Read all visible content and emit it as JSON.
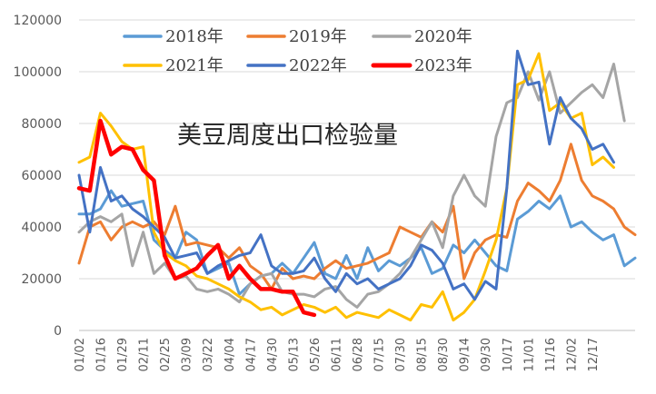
{
  "chart_data": {
    "type": "line",
    "title": "美豆周度出口检验量",
    "xlabel": "",
    "ylabel": "",
    "ylim": [
      0,
      120000
    ],
    "yticks": [
      "0",
      "20000",
      "40000",
      "60000",
      "80000",
      "100000",
      "120000"
    ],
    "x_labels": [
      "01/02",
      "01/16",
      "01/29",
      "02/11",
      "02/25",
      "03/09",
      "03/22",
      "04/04",
      "04/17",
      "04/30",
      "05/13",
      "05/26",
      "06/11",
      "06/28",
      "07/15",
      "07/30",
      "08/15",
      "08/30",
      "09/14",
      "09/30",
      "10/17",
      "11/01",
      "11/16",
      "12/02",
      "12/17"
    ],
    "x_label_week": [
      0,
      2,
      4,
      6,
      8,
      10,
      12,
      14,
      16,
      18,
      20,
      22,
      24,
      26,
      28,
      30,
      32,
      34,
      36,
      38,
      40,
      42,
      44,
      46,
      48
    ],
    "legend_position": "top",
    "grid": "horizontal",
    "series": [
      {
        "name": "2018年",
        "color": "#5B9BD5",
        "values": [
          45000,
          45000,
          47000,
          54000,
          48000,
          49000,
          50000,
          35000,
          31000,
          28000,
          38000,
          35000,
          22000,
          24000,
          26000,
          14000,
          18000,
          21000,
          22000,
          26000,
          22000,
          28000,
          34000,
          22000,
          20000,
          29000,
          20000,
          32000,
          23000,
          27000,
          25000,
          28000,
          32000,
          22000,
          24000,
          33000,
          30000,
          35000,
          30000,
          25000,
          23000,
          43000,
          46000,
          50000,
          47000,
          52000,
          40000,
          42000,
          38000,
          35000,
          37000,
          25000,
          28000
        ]
      },
      {
        "name": "2019年",
        "color": "#ED7D31",
        "values": [
          26000,
          40000,
          42000,
          35000,
          40000,
          42000,
          40000,
          42000,
          37000,
          48000,
          33000,
          34000,
          33000,
          32000,
          28000,
          32000,
          25000,
          22000,
          16000,
          24000,
          20000,
          21000,
          20000,
          24000,
          27000,
          24000,
          25000,
          26000,
          28000,
          30000,
          40000,
          38000,
          36000,
          42000,
          38000,
          48000,
          20000,
          30000,
          35000,
          37000,
          36000,
          50000,
          57000,
          54000,
          50000,
          58000,
          72000,
          58000,
          52000,
          50000,
          47000,
          40000,
          37000
        ]
      },
      {
        "name": "2020年",
        "color": "#A5A5A5",
        "values": [
          38000,
          42000,
          44000,
          42000,
          45000,
          25000,
          38000,
          22000,
          26000,
          20000,
          21000,
          16000,
          15000,
          16000,
          14000,
          11000,
          18000,
          21000,
          22000,
          15000,
          14000,
          14000,
          13000,
          16000,
          17000,
          12000,
          9000,
          14000,
          15000,
          18000,
          22000,
          28000,
          35000,
          42000,
          32000,
          52000,
          60000,
          52000,
          48000,
          75000,
          88000,
          90000,
          100000,
          89000,
          100000,
          84000,
          88000,
          92000,
          95000,
          90000,
          103000,
          81000
        ]
      },
      {
        "name": "2021年",
        "color": "#FFC000",
        "values": [
          65000,
          67000,
          84000,
          79000,
          73000,
          70000,
          71000,
          38000,
          30000,
          27000,
          25000,
          21000,
          20000,
          18000,
          16000,
          13000,
          11000,
          8000,
          9000,
          6000,
          8000,
          10000,
          9000,
          7000,
          9000,
          5000,
          7000,
          6000,
          5000,
          8000,
          6000,
          4000,
          10000,
          9000,
          15000,
          4000,
          7000,
          12000,
          23000,
          35000,
          55000,
          95000,
          97000,
          107000,
          85000,
          88000,
          82000,
          84000,
          64000,
          67000,
          63000
        ]
      },
      {
        "name": "2022年",
        "color": "#4472C4",
        "values": [
          60000,
          38000,
          63000,
          50000,
          52000,
          47000,
          44000,
          40000,
          36000,
          28000,
          29000,
          30000,
          22000,
          25000,
          27000,
          29000,
          30000,
          37000,
          25000,
          22000,
          22000,
          23000,
          28000,
          20000,
          15000,
          22000,
          18000,
          20000,
          16000,
          18000,
          20000,
          25000,
          33000,
          31000,
          26000,
          16000,
          18000,
          12000,
          19000,
          16000,
          55000,
          108000,
          95000,
          96000,
          72000,
          90000,
          82000,
          78000,
          70000,
          72000,
          65000
        ]
      },
      {
        "name": "2023年",
        "color": "#FF0000",
        "values": [
          55000,
          54000,
          81000,
          68000,
          71000,
          70000,
          62000,
          58000,
          29000,
          20000,
          22000,
          24000,
          29000,
          33000,
          20000,
          25000,
          20000,
          16000,
          16000,
          15000,
          15000,
          7000,
          6000
        ]
      }
    ]
  }
}
